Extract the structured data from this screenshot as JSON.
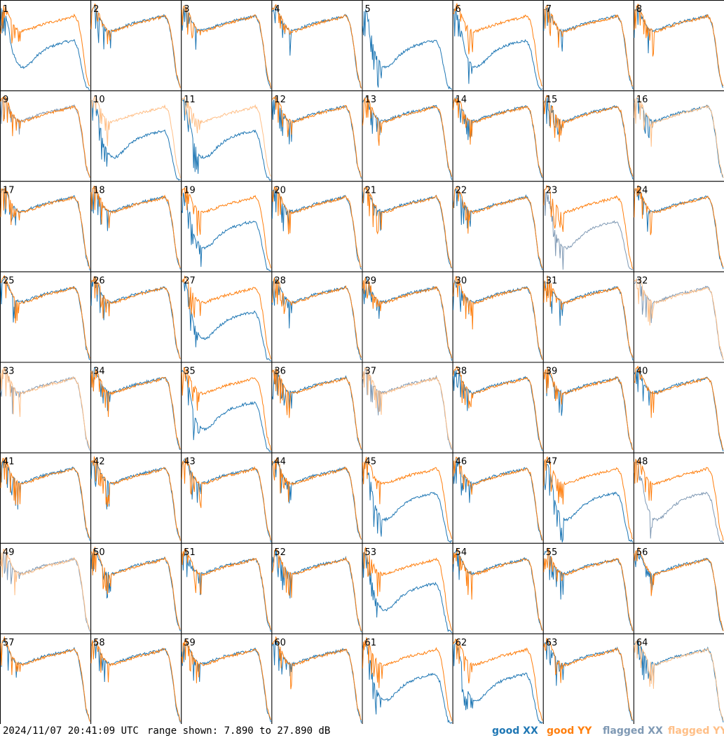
{
  "chart_data": {
    "type": "line",
    "title": "",
    "panel_count": 64,
    "panel_labels": [
      "1",
      "2",
      "3",
      "4",
      "5",
      "6",
      "7",
      "8",
      "9",
      "10",
      "11",
      "12",
      "13",
      "14",
      "15",
      "16",
      "17",
      "18",
      "19",
      "20",
      "21",
      "22",
      "23",
      "24",
      "25",
      "26",
      "27",
      "28",
      "29",
      "30",
      "31",
      "32",
      "33",
      "34",
      "35",
      "36",
      "37",
      "38",
      "39",
      "40",
      "41",
      "42",
      "43",
      "44",
      "45",
      "46",
      "47",
      "48",
      "49",
      "50",
      "51",
      "52",
      "53",
      "54",
      "55",
      "56",
      "57",
      "58",
      "59",
      "60",
      "61",
      "62",
      "63",
      "64"
    ],
    "grid_layout": "8 columns x 8 rows",
    "ylim": [
      7.89,
      27.89
    ],
    "yunit": "dB",
    "legend": [
      {
        "label": "good XX",
        "color": "#1f77b4"
      },
      {
        "label": "good YY",
        "color": "#ff7f0e"
      },
      {
        "label": "flagged XX",
        "color": "#7f99b4"
      },
      {
        "label": "flagged YY",
        "color": "#ffbf87"
      }
    ],
    "panel_status": {
      "5": {
        "xx": "good",
        "yy": "absent"
      },
      "9": {
        "xx": "flagged",
        "yy": "good"
      },
      "10": {
        "xx": "good",
        "yy": "flagged"
      },
      "11": {
        "xx": "good",
        "yy": "flagged"
      },
      "16": {
        "xx": "good",
        "yy": "flagged"
      },
      "23": {
        "xx": "flagged",
        "yy": "good"
      },
      "32": {
        "xx": "flagged",
        "yy": "flagged"
      },
      "33": {
        "xx": "flagged",
        "yy": "flagged"
      },
      "37": {
        "xx": "flagged",
        "yy": "flagged"
      },
      "48": {
        "xx": "flagged",
        "yy": "good"
      },
      "49": {
        "xx": "flagged",
        "yy": "flagged"
      },
      "64": {
        "xx": "good",
        "yy": "flagged"
      }
    },
    "traces": {
      "normal_xx": [
        25.4,
        26.6,
        24.4,
        22.6,
        21.5,
        21.2,
        21.3,
        21.6,
        22.0,
        22.3,
        22.6,
        22.9,
        23.1,
        23.3,
        23.5,
        23.7,
        23.9,
        24.1,
        24.3,
        24.6,
        23.0,
        18.0,
        11.0,
        8.2
      ],
      "normal_yy": [
        25.8,
        27.0,
        25.0,
        22.8,
        21.6,
        21.0,
        21.1,
        21.4,
        21.7,
        22.0,
        22.3,
        22.6,
        22.9,
        23.1,
        23.3,
        23.5,
        23.7,
        23.9,
        24.2,
        24.5,
        23.2,
        18.5,
        11.5,
        8.5
      ],
      "deep_xx": [
        26.0,
        25.5,
        22.0,
        16.5,
        14.5,
        13.2,
        13.0,
        13.4,
        14.2,
        15.2,
        16.0,
        16.6,
        17.2,
        17.6,
        17.9,
        18.2,
        18.5,
        18.7,
        18.8,
        18.9,
        17.0,
        12.5,
        8.5,
        7.9
      ]
    }
  },
  "footer": {
    "timestamp": "2024/11/07 20:41:09 UTC",
    "range": "range shown: 7.890 to 27.890 dB",
    "legend_good_xx": "good XX",
    "legend_good_yy": "good YY",
    "legend_flagged_xx": "flagged XX",
    "legend_flagged_yy": "flagged YY"
  }
}
